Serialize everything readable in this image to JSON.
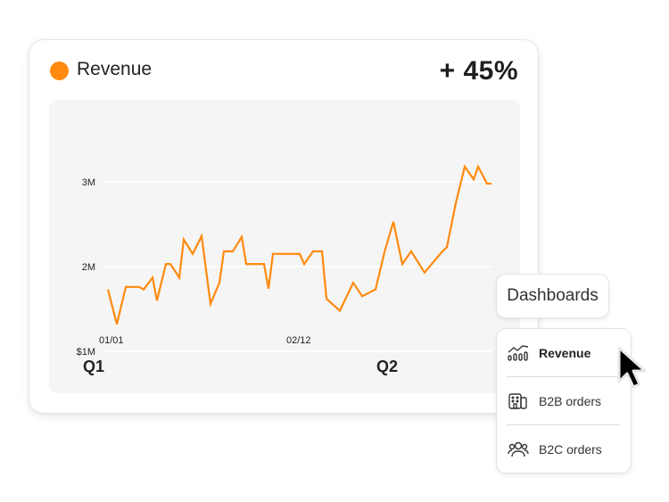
{
  "card": {
    "title": "Revenue",
    "change": "+ 45%",
    "accent": "#ff8a0f",
    "quarters": [
      "Q1",
      "Q2"
    ]
  },
  "chart_data": {
    "type": "line",
    "title": "",
    "xlabel": "",
    "ylabel": "",
    "y_ticks": [
      {
        "value": 3,
        "label": "3M"
      },
      {
        "value": 2,
        "label": "2M"
      },
      {
        "value": 1,
        "label": "$1M"
      }
    ],
    "x_ticks": [
      {
        "value": "01/01",
        "label": "01/01"
      },
      {
        "value": "02/12",
        "label": "02/12"
      }
    ],
    "ylim": [
      0.9,
      3.3
    ],
    "grid": true,
    "color": "#ff8a0f",
    "series": [
      {
        "x": [
          "01/01",
          "01/03",
          "01/05",
          "01/08",
          "01/09",
          "01/11",
          "01/12",
          "01/14",
          "01/15",
          "01/17",
          "01/18",
          "01/20",
          "01/22",
          "01/24",
          "01/26",
          "01/27",
          "01/29",
          "01/31",
          "02/01",
          "02/05",
          "02/06",
          "02/07",
          "02/13",
          "02/14",
          "02/16",
          "02/18",
          "02/19",
          "02/22",
          "02/25",
          "02/27",
          "03/02",
          "03/04",
          "03/06",
          "03/08",
          "03/10",
          "03/13",
          "03/17",
          "03/18",
          "03/20",
          "03/22",
          "03/24",
          "03/25",
          "03/27",
          "03/28"
        ],
        "y": [
          1.73,
          1.32,
          1.76,
          1.76,
          1.73,
          1.87,
          1.6,
          2.03,
          2.03,
          1.87,
          2.32,
          2.15,
          2.36,
          1.56,
          1.81,
          2.18,
          2.18,
          2.35,
          2.03,
          2.03,
          1.74,
          2.15,
          2.15,
          2.03,
          2.18,
          2.18,
          1.62,
          1.48,
          1.81,
          1.65,
          1.73,
          2.17,
          2.53,
          2.03,
          2.18,
          1.93,
          2.18,
          2.23,
          2.75,
          3.18,
          3.03,
          3.18,
          2.98,
          2.98
        ]
      }
    ]
  },
  "dashboards_label": "Dashboards",
  "menu": {
    "items": [
      {
        "label": "Revenue",
        "icon": "chart-growth-icon",
        "active": true
      },
      {
        "label": "B2B orders",
        "icon": "building-icon"
      },
      {
        "label": "B2C orders",
        "icon": "user-group-icon"
      }
    ]
  }
}
